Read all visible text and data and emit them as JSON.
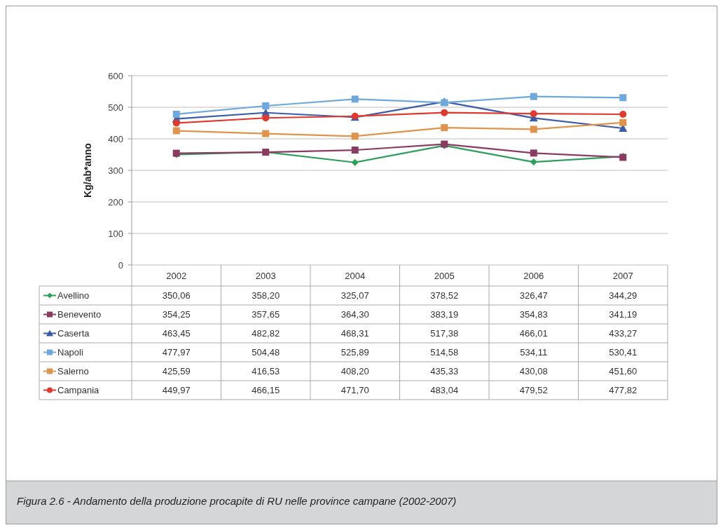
{
  "chart_data": {
    "type": "line",
    "ylabel": "Kg/ab*anno",
    "categories": [
      "2002",
      "2003",
      "2004",
      "2005",
      "2006",
      "2007"
    ],
    "ylim": [
      0,
      600
    ],
    "yticks": [
      0,
      100,
      200,
      300,
      400,
      500,
      600
    ],
    "grid": "y",
    "legend": "bottom",
    "series": [
      {
        "name": "Avellino",
        "color": "#2ca05a",
        "marker": "diamond",
        "values": [
          350.06,
          358.2,
          325.07,
          378.52,
          326.47,
          344.29
        ],
        "value_labels": [
          "350,06",
          "358,20",
          "325,07",
          "378,52",
          "326,47",
          "344,29"
        ]
      },
      {
        "name": "Benevento",
        "color": "#8b3a62",
        "marker": "square",
        "values": [
          354.25,
          357.65,
          364.3,
          383.19,
          354.83,
          341.19
        ],
        "value_labels": [
          "354,25",
          "357,65",
          "364,30",
          "383,19",
          "354,83",
          "341,19"
        ]
      },
      {
        "name": "Caserta",
        "color": "#3a5ba8",
        "marker": "triangle",
        "values": [
          463.45,
          482.82,
          468.31,
          517.38,
          466.01,
          433.27
        ],
        "value_labels": [
          "463,45",
          "482,82",
          "468,31",
          "517,38",
          "466,01",
          "433,27"
        ]
      },
      {
        "name": "Napoli",
        "color": "#6fa8dc",
        "marker": "square",
        "values": [
          477.97,
          504.48,
          525.89,
          514.58,
          534.11,
          530.41
        ],
        "value_labels": [
          "477,97",
          "504,48",
          "525,89",
          "514,58",
          "534,11",
          "530,41"
        ]
      },
      {
        "name": "Salerno",
        "color": "#e0934a",
        "marker": "square",
        "values": [
          425.59,
          416.53,
          408.2,
          435.33,
          430.08,
          451.6
        ],
        "value_labels": [
          "425,59",
          "416,53",
          "408,20",
          "435,33",
          "430,08",
          "451,60"
        ]
      },
      {
        "name": "Campania",
        "color": "#e03a2f",
        "marker": "circle",
        "values": [
          449.97,
          466.15,
          471.7,
          483.04,
          479.52,
          477.82
        ],
        "value_labels": [
          "449,97",
          "466,15",
          "471,70",
          "483,04",
          "479,52",
          "477,82"
        ]
      }
    ],
    "annotations": [
      "Figura 2.6 - Andamento della produzione procapite di RU nelle province campane (2002-2007)"
    ]
  }
}
